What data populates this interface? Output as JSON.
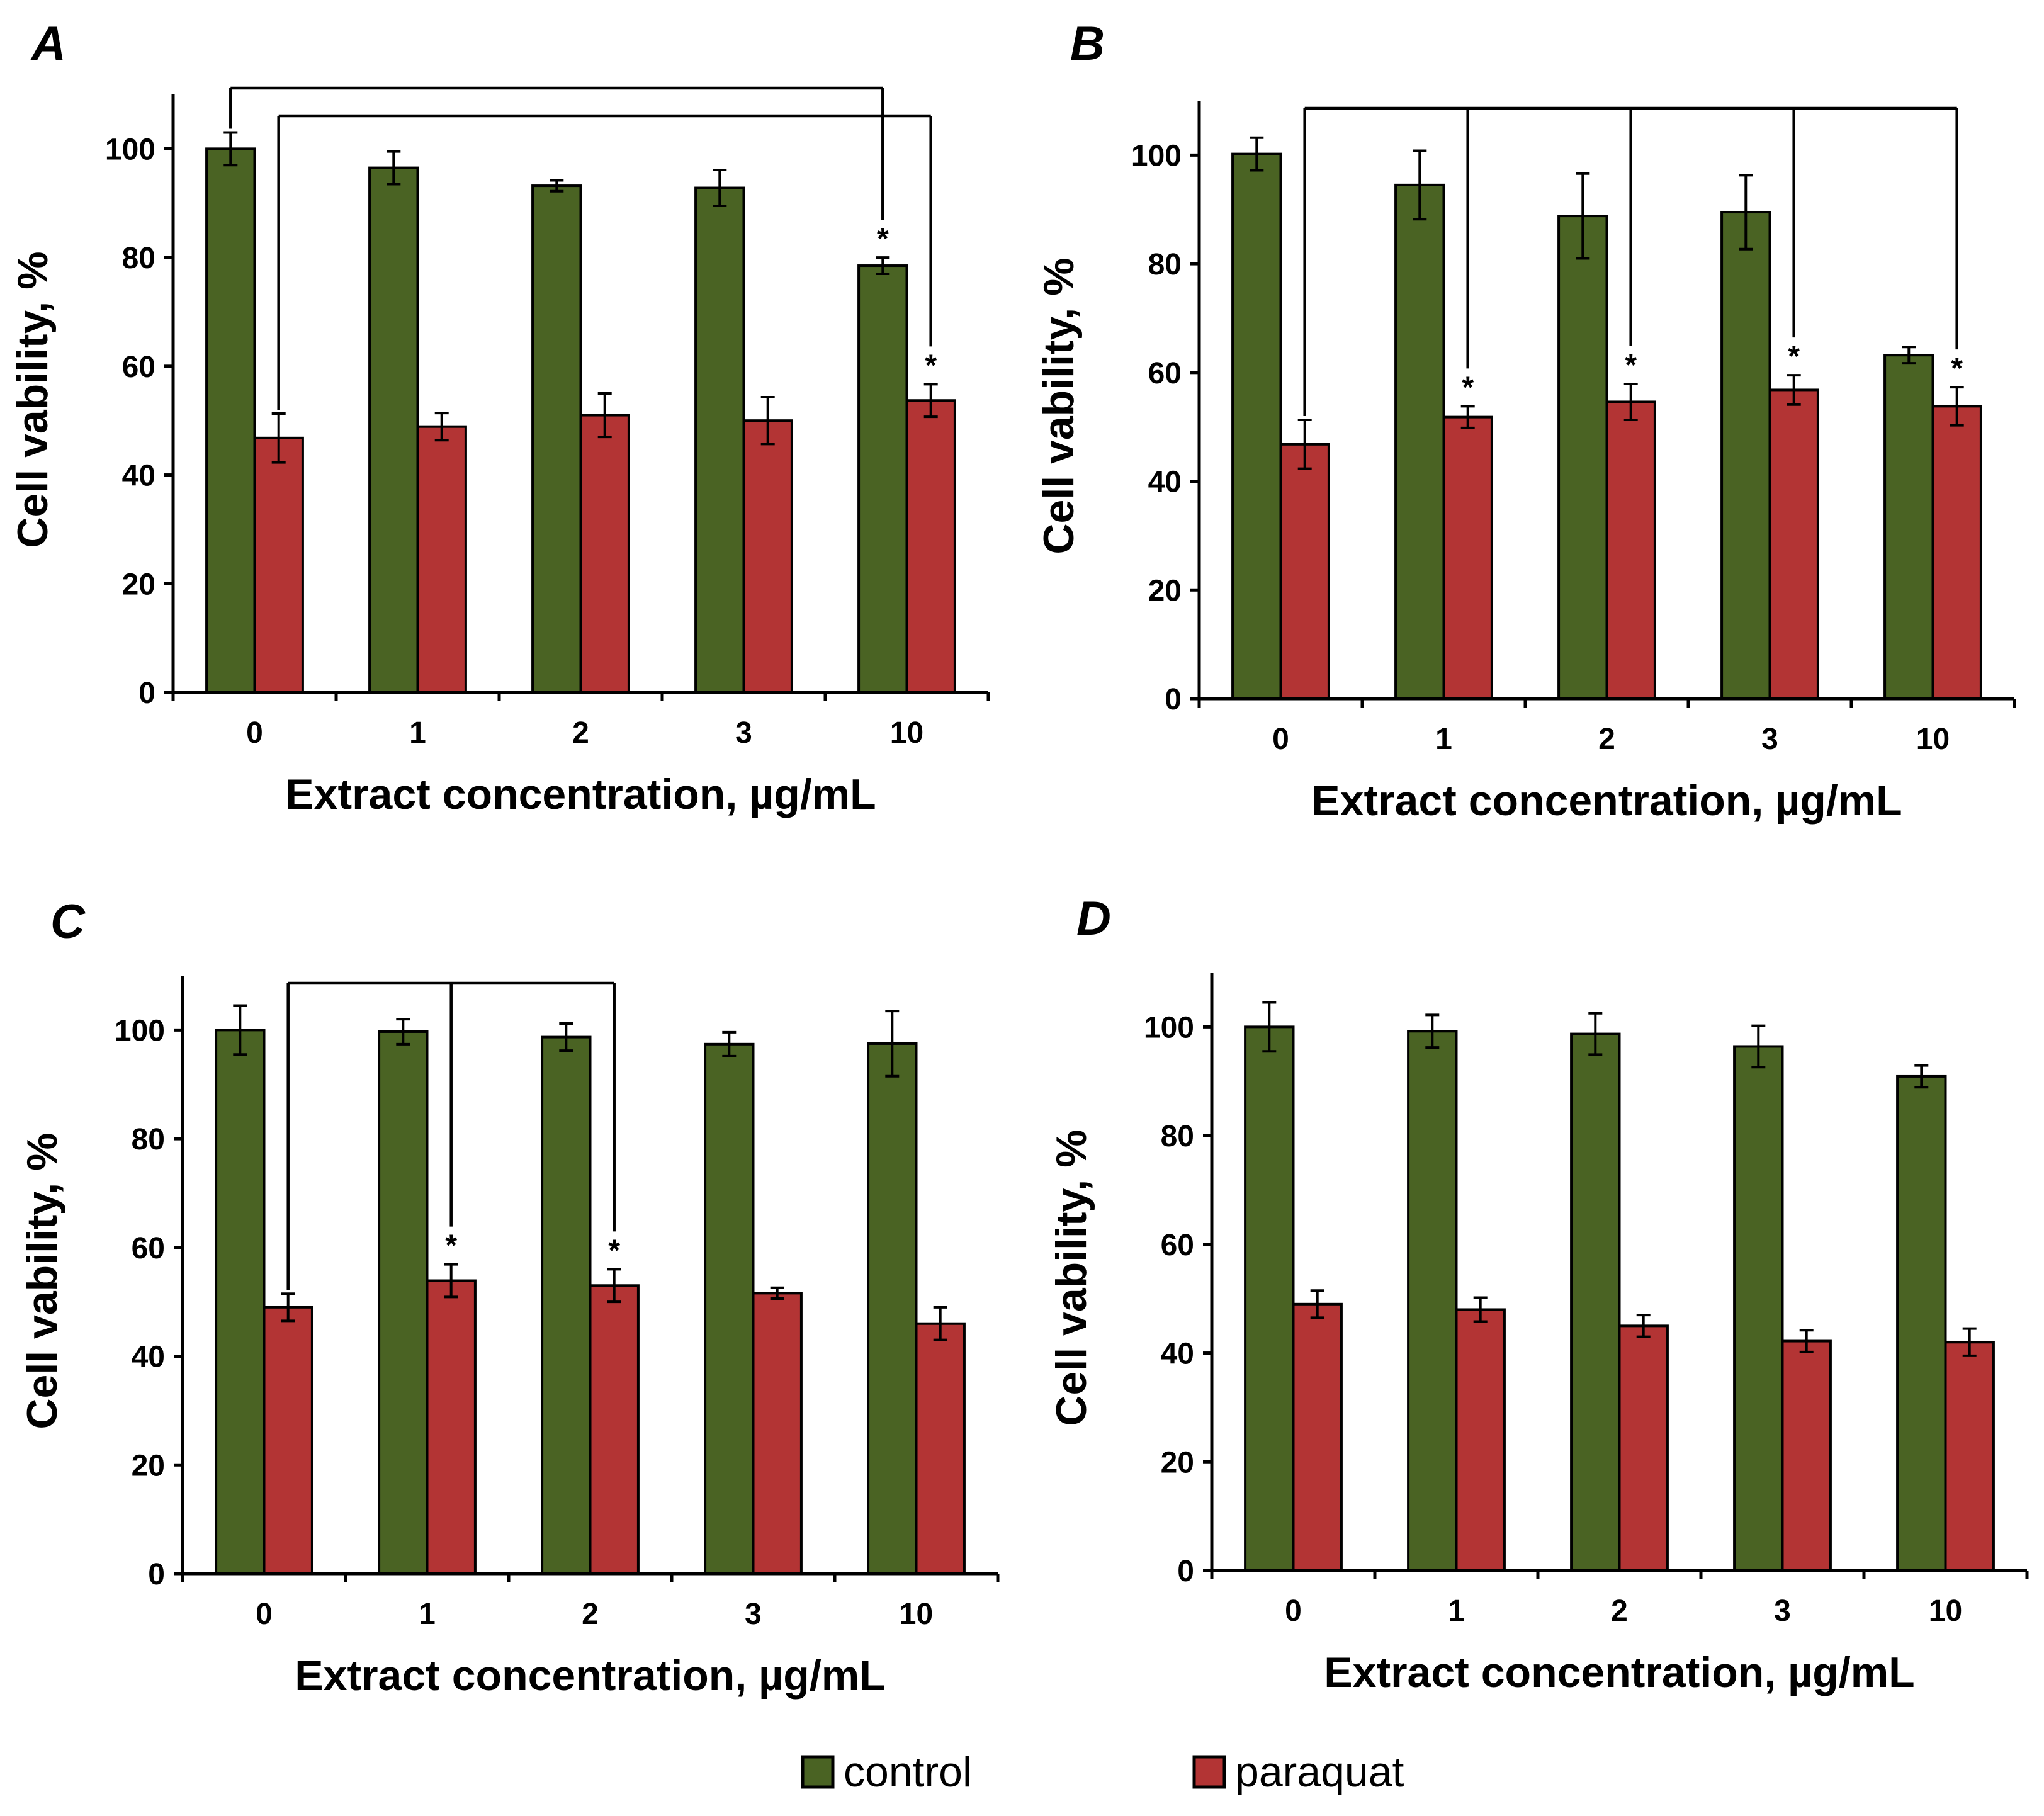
{
  "chart_data": [
    {
      "panel": "A",
      "type": "bar",
      "categories": [
        "0",
        "1",
        "2",
        "3",
        "10"
      ],
      "series": [
        {
          "name": "control",
          "values": [
            100,
            96.5,
            93.2,
            92.8,
            78.5
          ],
          "errors": [
            3.0,
            3.0,
            1.0,
            3.3,
            1.5
          ]
        },
        {
          "name": "paraquat",
          "values": [
            46.8,
            48.9,
            51.0,
            50.0,
            53.7
          ],
          "errors": [
            4.5,
            2.5,
            4.0,
            4.3,
            3.0
          ]
        }
      ],
      "significance": [
        {
          "series": "control",
          "category": "10",
          "mark": "*"
        },
        {
          "series": "paraquat",
          "category": "10",
          "mark": "*"
        }
      ],
      "brackets": [
        {
          "from": {
            "series": "control",
            "category": "0"
          },
          "to": [
            {
              "series": "control",
              "category": "10"
            }
          ]
        },
        {
          "from": {
            "series": "paraquat",
            "category": "0"
          },
          "to": [
            {
              "series": "paraquat",
              "category": "10"
            }
          ]
        }
      ],
      "xlabel": "Extract concentration, µg/mL",
      "ylabel": "Cell vability, %",
      "ylim": [
        0,
        110
      ],
      "yticks": [
        "0",
        "20",
        "40",
        "60",
        "80",
        "100"
      ]
    },
    {
      "panel": "B",
      "type": "bar",
      "categories": [
        "0",
        "1",
        "2",
        "3",
        "10"
      ],
      "series": [
        {
          "name": "control",
          "values": [
            100.2,
            94.5,
            88.8,
            89.5,
            63.2
          ],
          "errors": [
            3.0,
            6.3,
            7.8,
            6.8,
            1.5
          ]
        },
        {
          "name": "paraquat",
          "values": [
            46.8,
            51.8,
            54.6,
            56.8,
            53.8
          ],
          "errors": [
            4.5,
            2.0,
            3.3,
            2.7,
            3.5
          ]
        }
      ],
      "significance": [
        {
          "series": "paraquat",
          "category": "1",
          "mark": "*"
        },
        {
          "series": "paraquat",
          "category": "2",
          "mark": "*"
        },
        {
          "series": "paraquat",
          "category": "3",
          "mark": "*"
        },
        {
          "series": "paraquat",
          "category": "10",
          "mark": "*"
        }
      ],
      "brackets": [
        {
          "from": {
            "series": "paraquat",
            "category": "0"
          },
          "to": [
            {
              "series": "paraquat",
              "category": "1"
            },
            {
              "series": "paraquat",
              "category": "2"
            },
            {
              "series": "paraquat",
              "category": "3"
            },
            {
              "series": "paraquat",
              "category": "10"
            }
          ]
        }
      ],
      "xlabel": "Extract concentration, µg/mL",
      "ylabel": "Cell vability, %",
      "ylim": [
        0,
        110
      ],
      "yticks": [
        "0",
        "20",
        "40",
        "60",
        "80",
        "100"
      ]
    },
    {
      "panel": "C",
      "type": "bar",
      "categories": [
        "0",
        "1",
        "2",
        "3",
        "10"
      ],
      "series": [
        {
          "name": "control",
          "values": [
            100,
            99.7,
            98.7,
            97.4,
            97.5
          ],
          "errors": [
            4.5,
            2.3,
            2.5,
            2.2,
            6.0
          ]
        },
        {
          "name": "paraquat",
          "values": [
            49.0,
            53.9,
            53.0,
            51.6,
            46.0
          ],
          "errors": [
            2.5,
            3.0,
            3.0,
            1.0,
            3.0
          ]
        }
      ],
      "significance": [
        {
          "series": "paraquat",
          "category": "1",
          "mark": "*"
        },
        {
          "series": "paraquat",
          "category": "2",
          "mark": "*"
        }
      ],
      "brackets": [
        {
          "from": {
            "series": "paraquat",
            "category": "0"
          },
          "to": [
            {
              "series": "paraquat",
              "category": "1"
            },
            {
              "series": "paraquat",
              "category": "2"
            }
          ]
        }
      ],
      "xlabel": "Extract concentration, µg/mL",
      "ylabel": "Cell vability, %",
      "ylim": [
        0,
        110
      ],
      "yticks": [
        "0",
        "20",
        "40",
        "60",
        "80",
        "100"
      ]
    },
    {
      "panel": "D",
      "type": "bar",
      "categories": [
        "0",
        "1",
        "2",
        "3",
        "10"
      ],
      "series": [
        {
          "name": "control",
          "values": [
            100,
            99.2,
            98.7,
            96.4,
            90.9
          ],
          "errors": [
            4.5,
            3.0,
            3.8,
            3.8,
            2.0
          ]
        },
        {
          "name": "paraquat",
          "values": [
            49.0,
            48.0,
            45.0,
            42.2,
            42.0
          ],
          "errors": [
            2.5,
            2.2,
            2.0,
            2.0,
            2.5
          ]
        }
      ],
      "significance": [],
      "brackets": [],
      "xlabel": "Extract concentration, µg/mL",
      "ylabel": "Cell vability, %",
      "ylim": [
        0,
        110
      ],
      "yticks": [
        "0",
        "20",
        "40",
        "60",
        "80",
        "100"
      ]
    }
  ],
  "legend": {
    "items": [
      {
        "name": "control",
        "color": "#4a6323"
      },
      {
        "name": "paraquat",
        "color": "#b33434"
      }
    ]
  },
  "colors": {
    "control": "#4a6323",
    "paraquat": "#b33434",
    "edge": "#000000"
  }
}
